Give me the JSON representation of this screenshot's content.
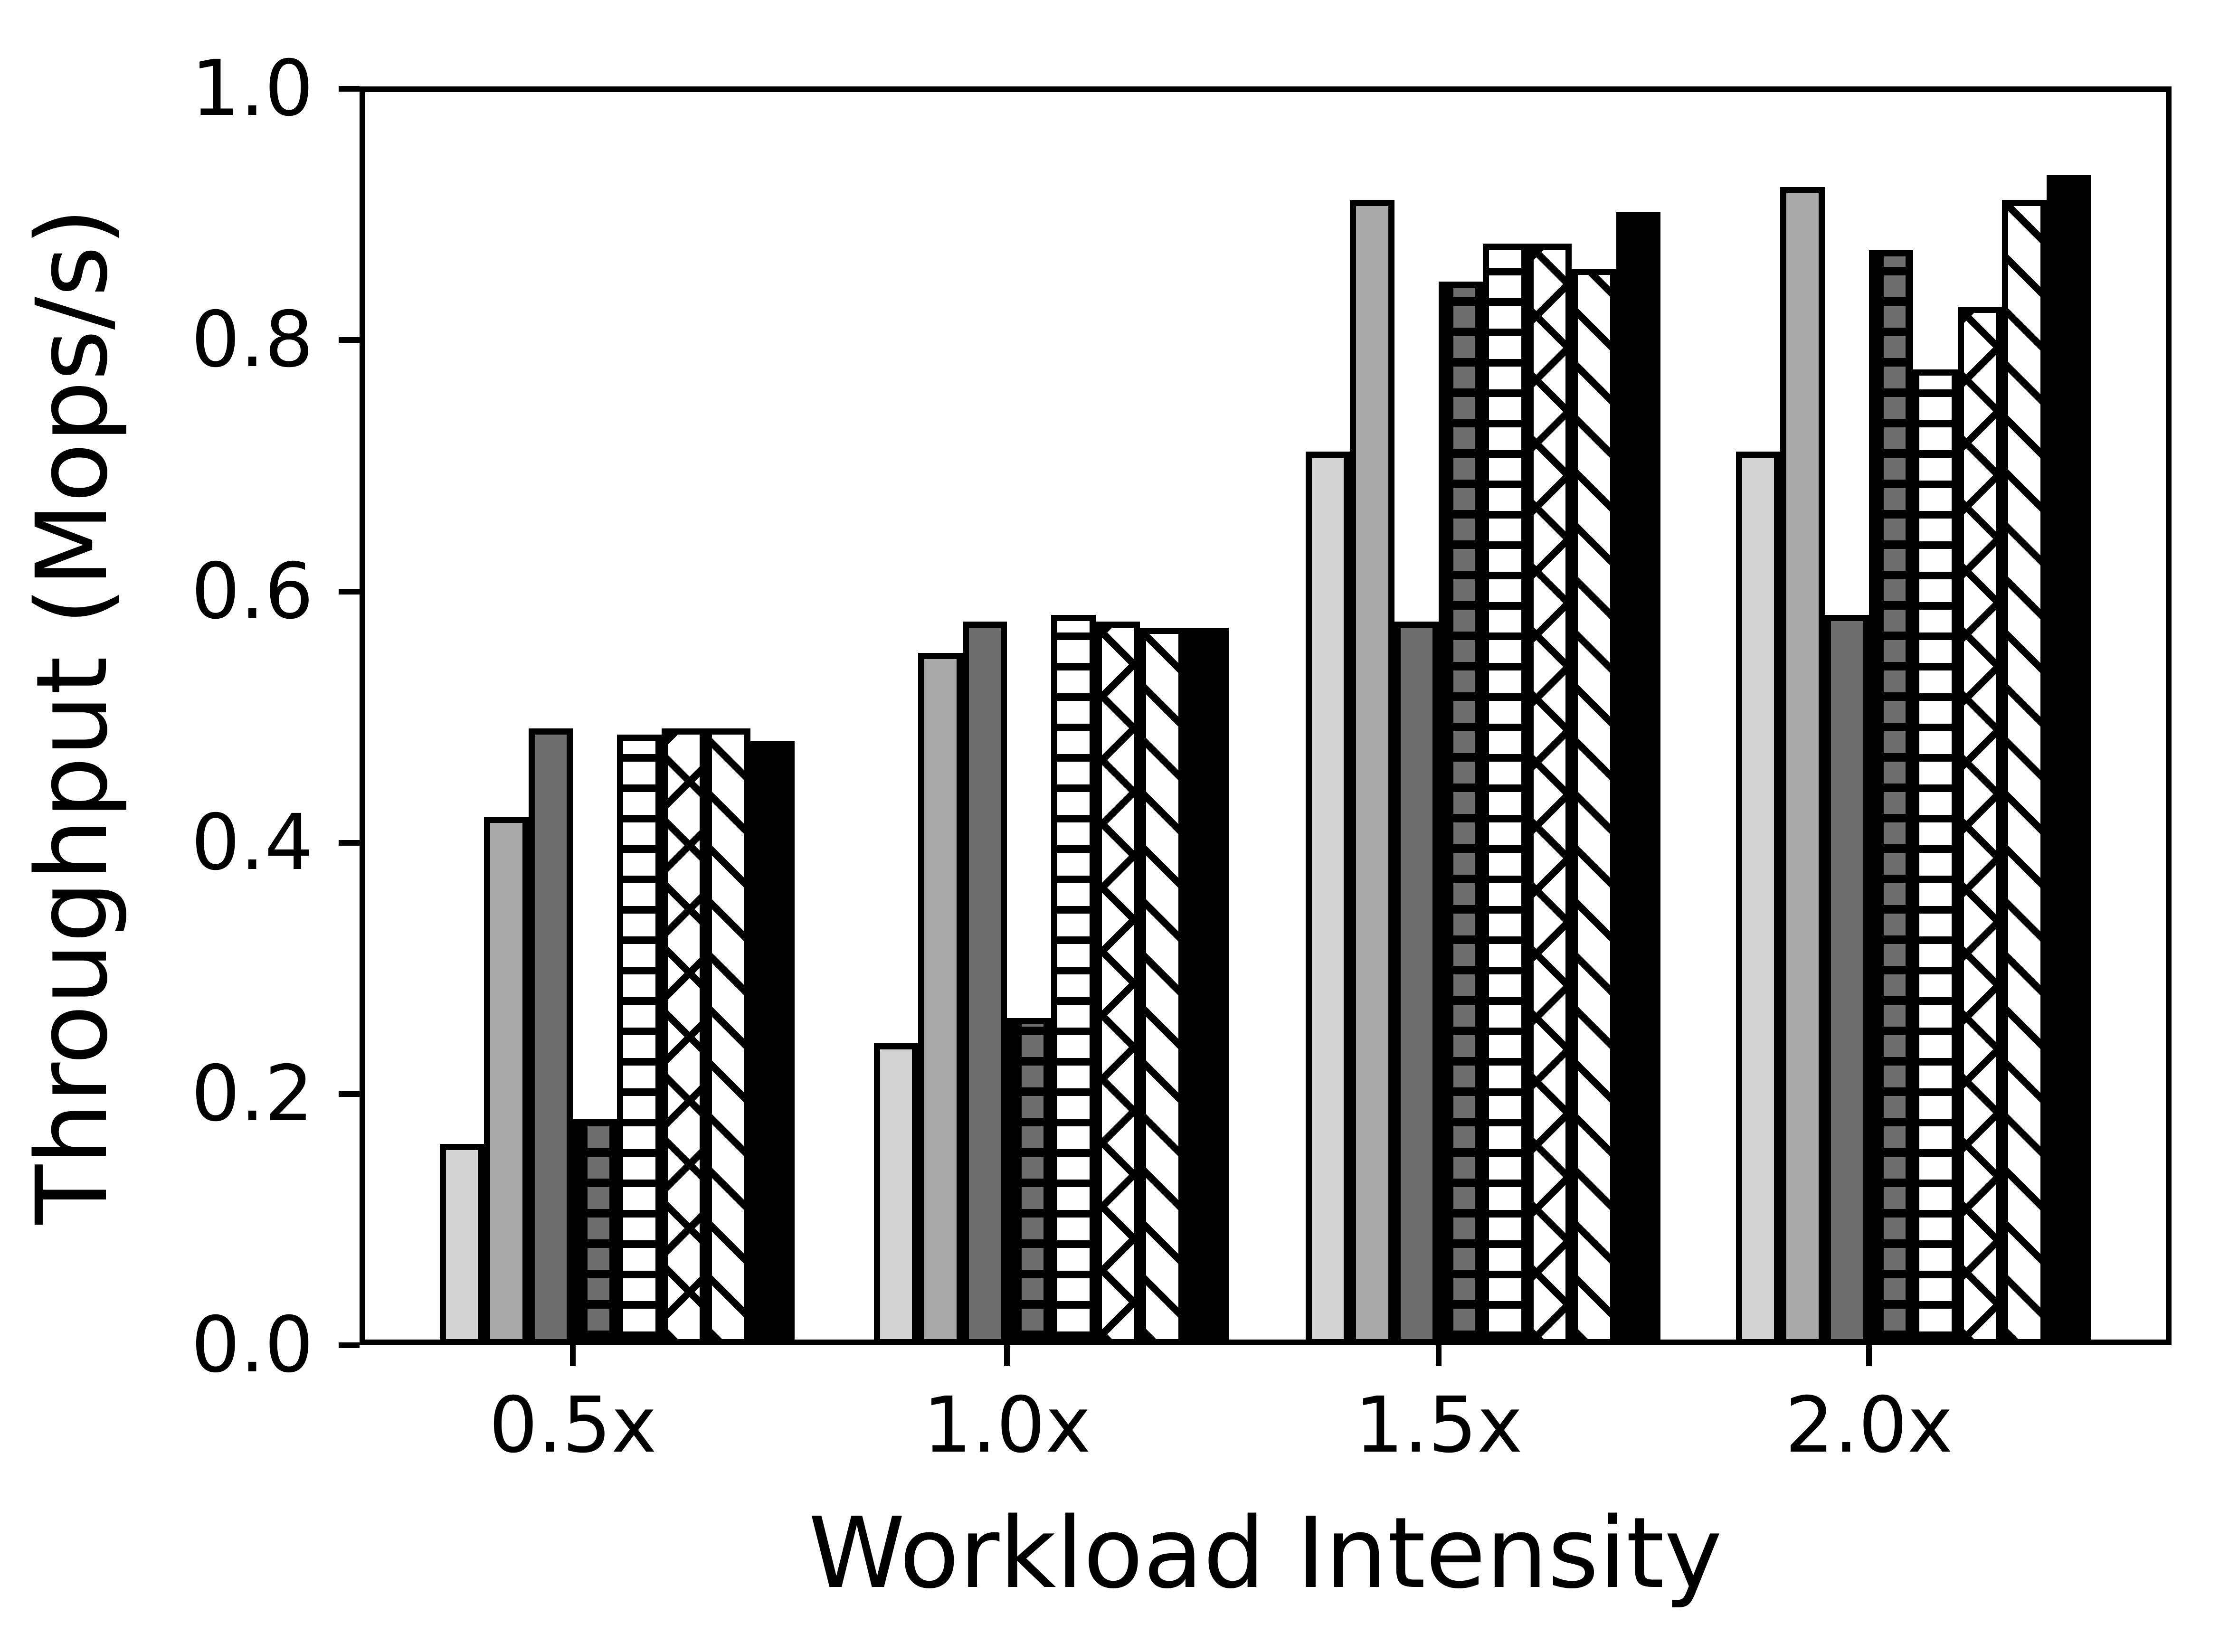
{
  "chart_data": {
    "type": "bar",
    "title": "",
    "xlabel": "Workload Intensity",
    "ylabel": "Throughput (Mops/s)",
    "categories": [
      "0.5x",
      "1.0x",
      "1.5x",
      "2.0x"
    ],
    "y_tick_labels": [
      "0.0",
      "0.2",
      "0.4",
      "0.6",
      "0.8",
      "1.0"
    ],
    "ylim": [
      0.0,
      1.0
    ],
    "grid": false,
    "legend_position": "none",
    "bar_edge_color": "#000000",
    "series": [
      {
        "name": "light-gray-solid",
        "fill": "#d3d3d3",
        "hatch": "none",
        "values": [
          0.16,
          0.24,
          0.71,
          0.71
        ]
      },
      {
        "name": "medium-gray-solid",
        "fill": "#a9a9a9",
        "hatch": "none",
        "values": [
          0.42,
          0.55,
          0.91,
          0.92
        ]
      },
      {
        "name": "dark-gray-solid",
        "fill": "#6e6e6e",
        "hatch": "none",
        "values": [
          0.49,
          0.575,
          0.575,
          0.58
        ]
      },
      {
        "name": "dark-gray-grid-hatch",
        "fill": "#6e6e6e",
        "hatch": "grid",
        "values": [
          0.18,
          0.26,
          0.845,
          0.87
        ]
      },
      {
        "name": "white-horizontal-hatch",
        "fill": "#ffffff",
        "hatch": "horizontal",
        "values": [
          0.485,
          0.58,
          0.875,
          0.775
        ]
      },
      {
        "name": "white-cross-hatch",
        "fill": "#ffffff",
        "hatch": "cross-diagonal",
        "values": [
          0.49,
          0.575,
          0.875,
          0.825
        ]
      },
      {
        "name": "white-diagonal-hatch",
        "fill": "#ffffff",
        "hatch": "diagonal",
        "values": [
          0.49,
          0.57,
          0.855,
          0.91
        ]
      },
      {
        "name": "black-solid",
        "fill": "#000000",
        "hatch": "none",
        "values": [
          0.48,
          0.57,
          0.9,
          0.93
        ]
      }
    ]
  }
}
